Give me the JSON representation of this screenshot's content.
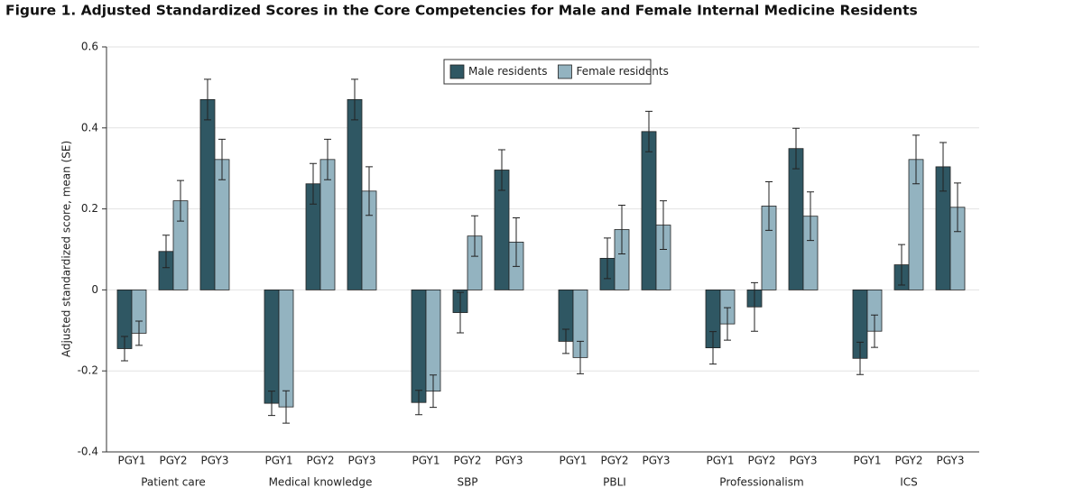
{
  "chart_data": {
    "type": "grouped-bar",
    "title": "Figure 1. Adjusted Standardized Scores in the Core Competencies for Male and Female Internal Medicine Residents",
    "y_label": "Adjusted standardized score, mean (SE)",
    "groups": [
      "Patient care",
      "Medical knowledge",
      "SBP",
      "PBLI",
      "Professionalism",
      "ICS"
    ],
    "categories": [
      "PGY1",
      "PGY2",
      "PGY3",
      "PGY1",
      "PGY2",
      "PGY3",
      "PGY1",
      "PGY2",
      "PGY3",
      "PGY1",
      "PGY2",
      "PGY3",
      "PGY1",
      "PGY2",
      "PGY3",
      "PGY1",
      "PGY2",
      "PGY3"
    ],
    "series": [
      {
        "name": "Male residents",
        "color": "#2f5763",
        "values": [
          -0.145,
          0.095,
          0.47,
          -0.28,
          0.262,
          0.47,
          -0.278,
          -0.056,
          0.296,
          -0.127,
          0.078,
          0.391,
          -0.143,
          -0.042,
          0.349,
          -0.169,
          0.062,
          0.304
        ],
        "errors": [
          0.03,
          0.04,
          0.05,
          0.03,
          0.05,
          0.05,
          0.03,
          0.05,
          0.05,
          0.03,
          0.05,
          0.05,
          0.04,
          0.06,
          0.05,
          0.04,
          0.05,
          0.06
        ]
      },
      {
        "name": "Female residents",
        "color": "#93b3c0",
        "values": [
          -0.107,
          0.22,
          0.322,
          -0.289,
          0.322,
          0.244,
          -0.25,
          0.133,
          0.118,
          -0.167,
          0.149,
          0.16,
          -0.084,
          0.207,
          0.182,
          -0.102,
          0.322,
          0.204
        ],
        "errors": [
          0.03,
          0.05,
          0.05,
          0.04,
          0.05,
          0.06,
          0.04,
          0.05,
          0.06,
          0.04,
          0.06,
          0.06,
          0.04,
          0.06,
          0.06,
          0.04,
          0.06,
          0.06
        ]
      }
    ],
    "ylim": [
      -0.4,
      0.6
    ],
    "yticks": [
      -0.4,
      -0.2,
      0,
      0.2,
      0.4,
      0.6
    ],
    "grid": true,
    "legend": "top"
  }
}
